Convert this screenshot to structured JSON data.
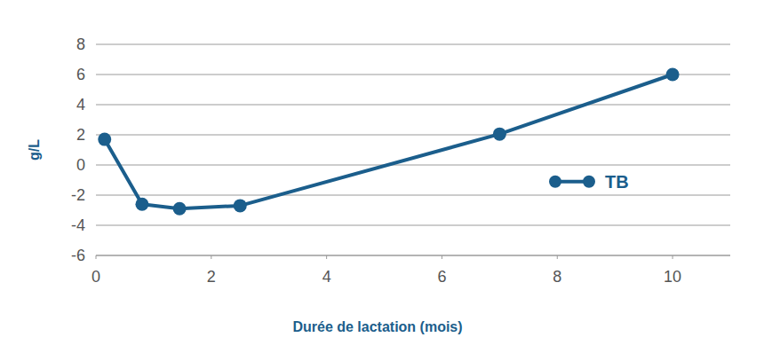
{
  "chart_data": {
    "type": "line",
    "x_label": "Durée de lactation (mois)",
    "y_label": "g/L",
    "x": [
      0.15,
      0.8,
      1.45,
      2.5,
      7,
      10
    ],
    "series": [
      {
        "name": "TB",
        "color": "#1b5e8c",
        "marker": "circle",
        "values": [
          1.7,
          -2.6,
          -2.9,
          -2.7,
          2.05,
          6.0
        ]
      }
    ],
    "xlim": [
      0,
      11
    ],
    "ylim": [
      -6,
      8
    ],
    "xticks": [
      0,
      2,
      4,
      6,
      8,
      10
    ],
    "yticks": [
      -6,
      -4,
      -2,
      0,
      2,
      4,
      6,
      8
    ],
    "grid": true,
    "legend": "right"
  }
}
